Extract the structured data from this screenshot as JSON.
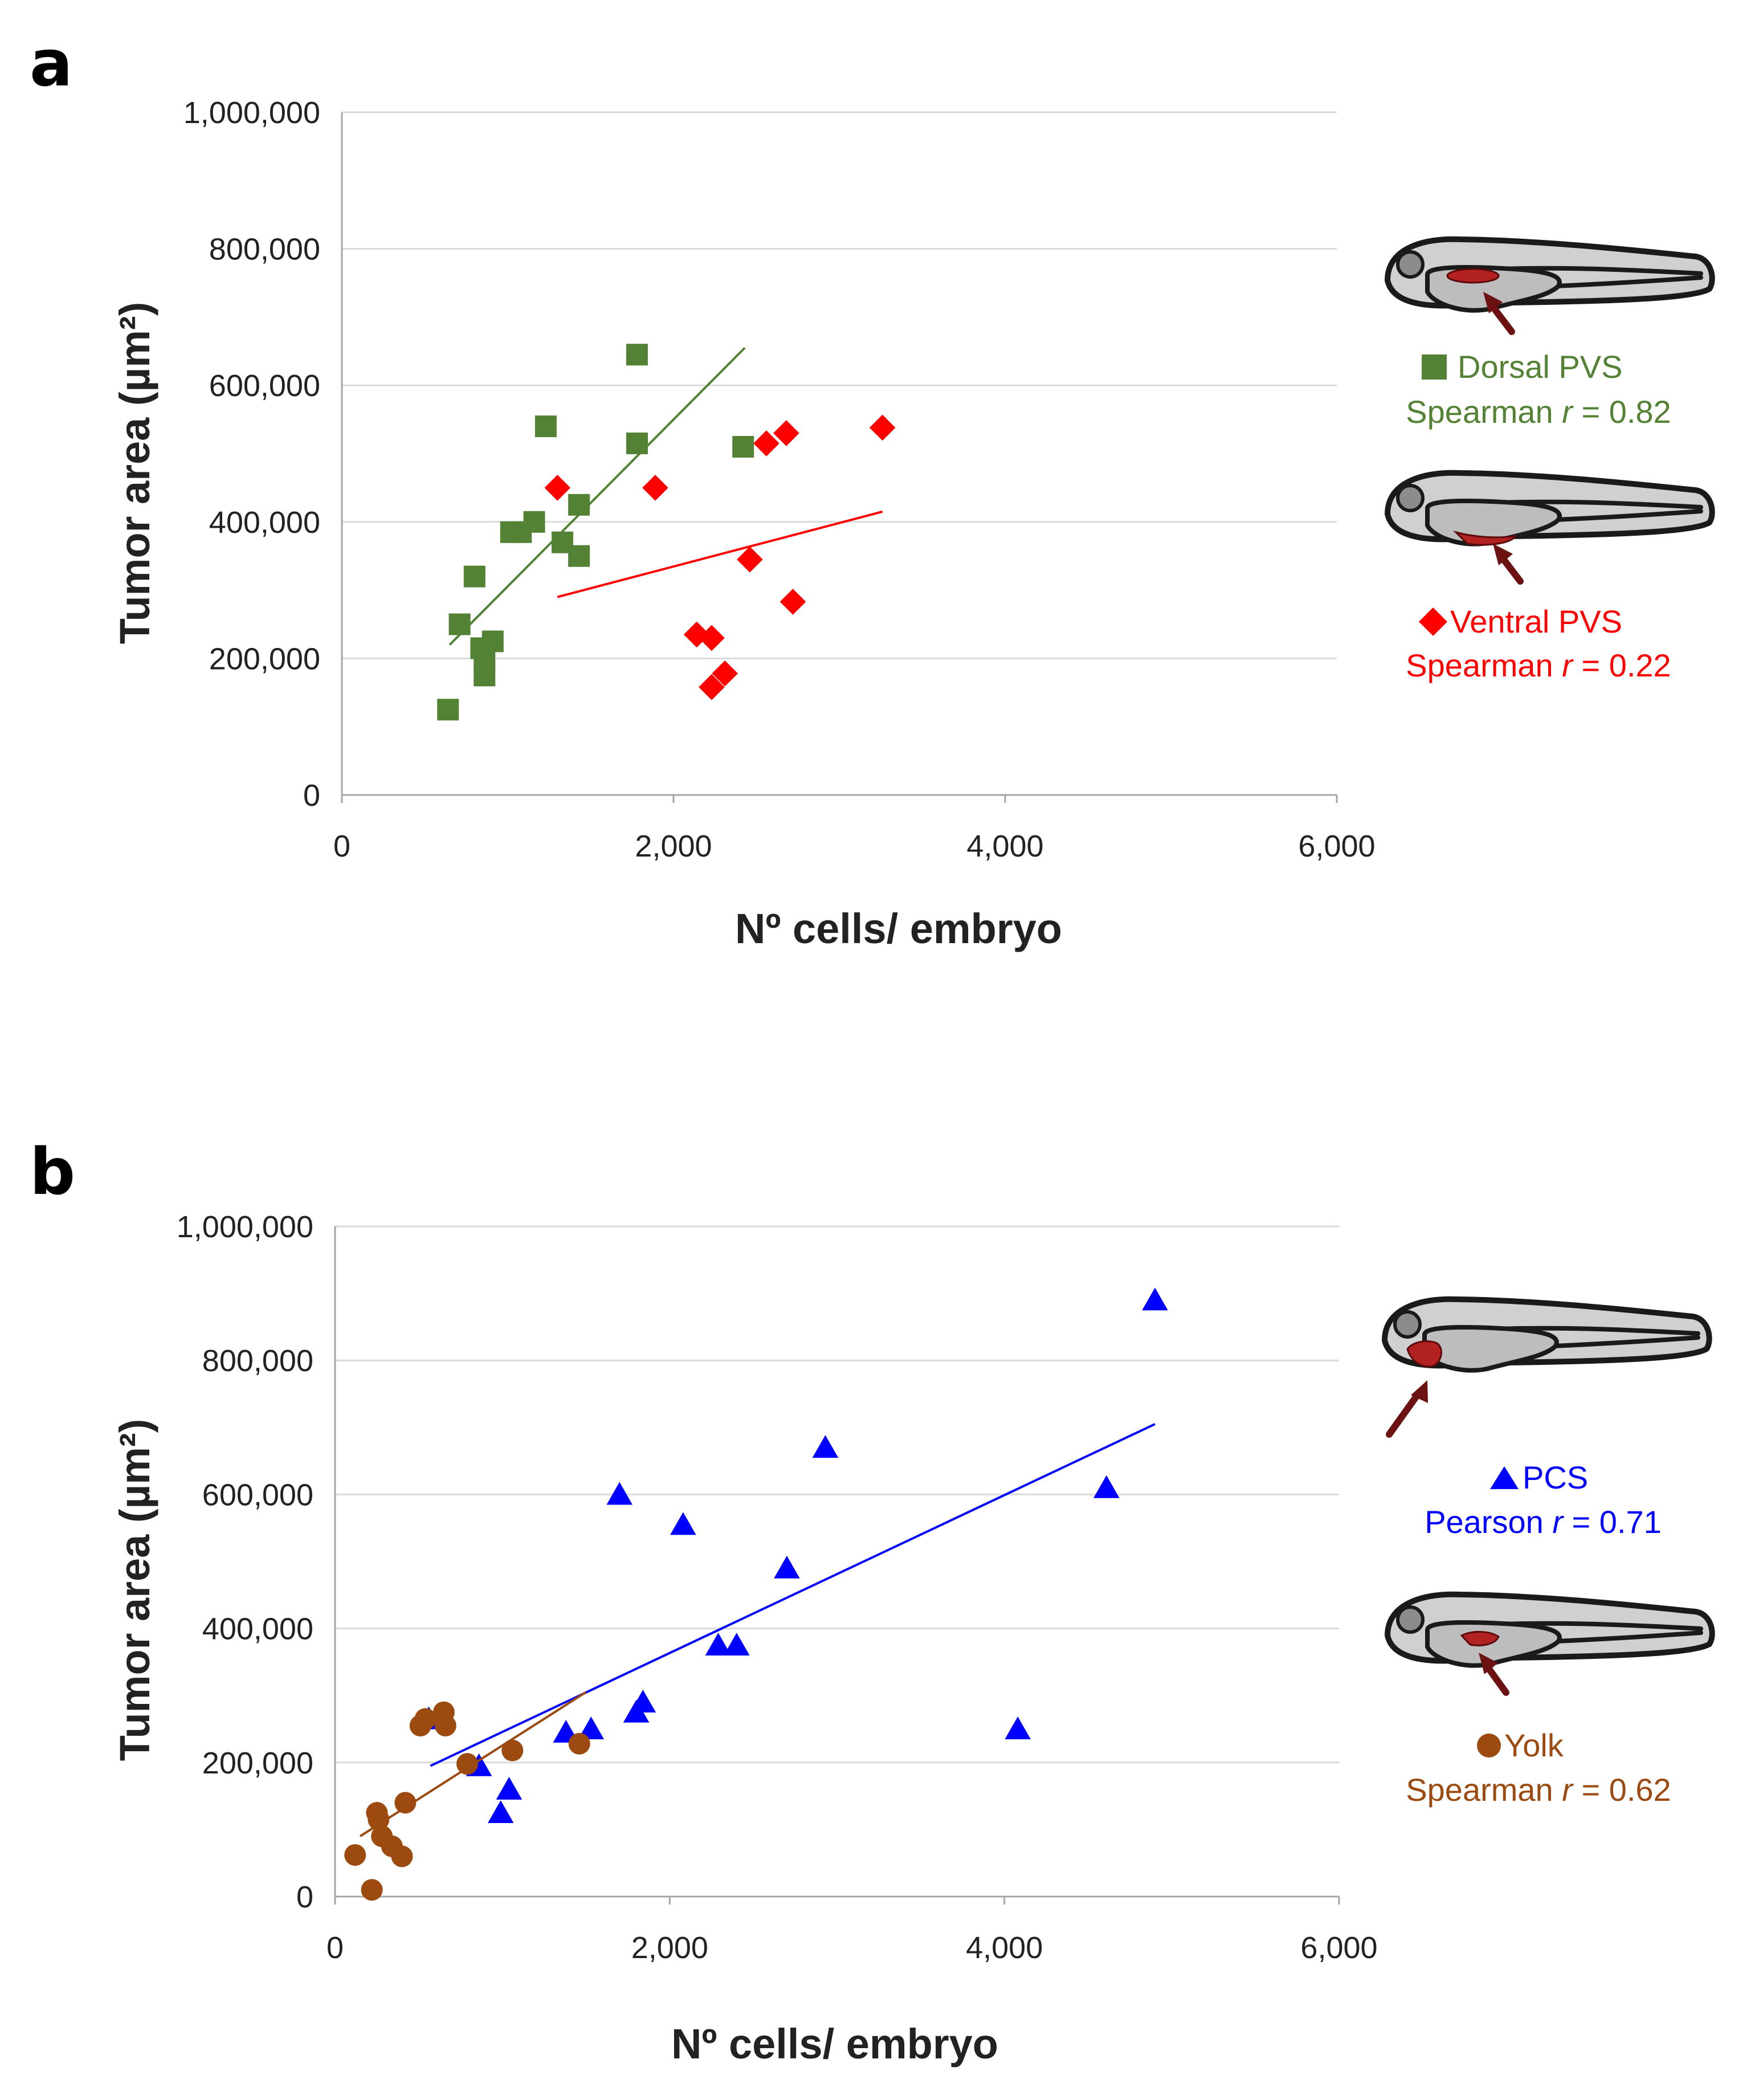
{
  "chart_data": [
    {
      "type": "scatter",
      "panel_label": "a",
      "xlabel": "Nº cells/ embryo",
      "ylabel": "Tumor area (µm²)",
      "xlim": [
        0,
        6000
      ],
      "ylim": [
        0,
        1000000
      ],
      "xticks": [
        "0",
        "2,000",
        "4,000",
        "6,000"
      ],
      "yticks": [
        "0",
        "200,000",
        "400,000",
        "600,000",
        "800,000",
        "1,000,000"
      ],
      "grid": true,
      "series": [
        {
          "name": "Dorsal PVS",
          "stat": "Spearman r = 0.82",
          "stat_prefix": "Spearman ",
          "stat_var": "r",
          "stat_suffix": " = 0.82",
          "color": "#548235",
          "marker": "square",
          "points": [
            [
              640,
              125000
            ],
            [
              710,
              250000
            ],
            [
              800,
              320000
            ],
            [
              840,
              215000
            ],
            [
              860,
              175000
            ],
            [
              860,
              200000
            ],
            [
              910,
              225000
            ],
            [
              1020,
              385000
            ],
            [
              1080,
              385000
            ],
            [
              1160,
              400000
            ],
            [
              1230,
              540000
            ],
            [
              1330,
              370000
            ],
            [
              1430,
              425000
            ],
            [
              1430,
              350000
            ],
            [
              1780,
              645000
            ],
            [
              1780,
              515000
            ],
            [
              2420,
              510000
            ]
          ],
          "trendline": [
            [
              650,
              220000
            ],
            [
              2430,
              655000
            ]
          ]
        },
        {
          "name": "Ventral PVS",
          "stat": "Spearman r = 0.22",
          "stat_prefix": "Spearman ",
          "stat_var": "r",
          "stat_suffix": " = 0.22",
          "color": "#ff0000",
          "marker": "diamond",
          "points": [
            [
              1300,
              450000
            ],
            [
              1890,
              450000
            ],
            [
              2140,
              235000
            ],
            [
              2230,
              230000
            ],
            [
              2230,
              158000
            ],
            [
              2310,
              178000
            ],
            [
              2460,
              345000
            ],
            [
              2560,
              515000
            ],
            [
              2680,
              530000
            ],
            [
              2720,
              283000
            ],
            [
              3260,
              538000
            ]
          ],
          "trendline": [
            [
              1300,
              290000
            ],
            [
              3260,
              415000
            ]
          ]
        }
      ]
    },
    {
      "type": "scatter",
      "panel_label": "b",
      "xlabel": "Nº cells/ embryo",
      "ylabel": "Tumor area (µm²)",
      "xlim": [
        0,
        6000
      ],
      "ylim": [
        0,
        1000000
      ],
      "xticks": [
        "0",
        "2,000",
        "4,000",
        "6,000"
      ],
      "yticks": [
        "0",
        "200,000",
        "400,000",
        "600,000",
        "800,000",
        "1,000,000"
      ],
      "grid": true,
      "series": [
        {
          "name": "PCS",
          "stat": "Pearson r = 0.71",
          "stat_prefix": "Pearson ",
          "stat_var": "r",
          "stat_suffix": " = 0.71",
          "color": "#0000ff",
          "marker": "triangle",
          "points": [
            [
              560,
              265000
            ],
            [
              860,
              195000
            ],
            [
              990,
              125000
            ],
            [
              1040,
              160000
            ],
            [
              1380,
              245000
            ],
            [
              1530,
              250000
            ],
            [
              1700,
              600000
            ],
            [
              1800,
              275000
            ],
            [
              1840,
              290000
            ],
            [
              2080,
              555000
            ],
            [
              2290,
              375000
            ],
            [
              2400,
              375000
            ],
            [
              2700,
              490000
            ],
            [
              2930,
              670000
            ],
            [
              4080,
              250000
            ],
            [
              4610,
              610000
            ],
            [
              4900,
              890000
            ]
          ],
          "trendline": [
            [
              570,
              195000
            ],
            [
              4900,
              705000
            ]
          ]
        },
        {
          "name": "Yolk",
          "stat": "Spearman r = 0.62",
          "stat_prefix": "Spearman ",
          "stat_var": "r",
          "stat_suffix": " = 0.62",
          "color": "#9c4a0f",
          "marker": "circle",
          "points": [
            [
              120,
              62000
            ],
            [
              220,
              10000
            ],
            [
              250,
              125000
            ],
            [
              260,
              115000
            ],
            [
              280,
              90000
            ],
            [
              340,
              75000
            ],
            [
              400,
              60000
            ],
            [
              420,
              140000
            ],
            [
              510,
              255000
            ],
            [
              540,
              265000
            ],
            [
              650,
              275000
            ],
            [
              660,
              255000
            ],
            [
              790,
              198000
            ],
            [
              1060,
              218000
            ],
            [
              1460,
              228000
            ]
          ],
          "trendline": [
            [
              150,
              90000
            ],
            [
              1500,
              305000
            ]
          ]
        }
      ]
    }
  ]
}
